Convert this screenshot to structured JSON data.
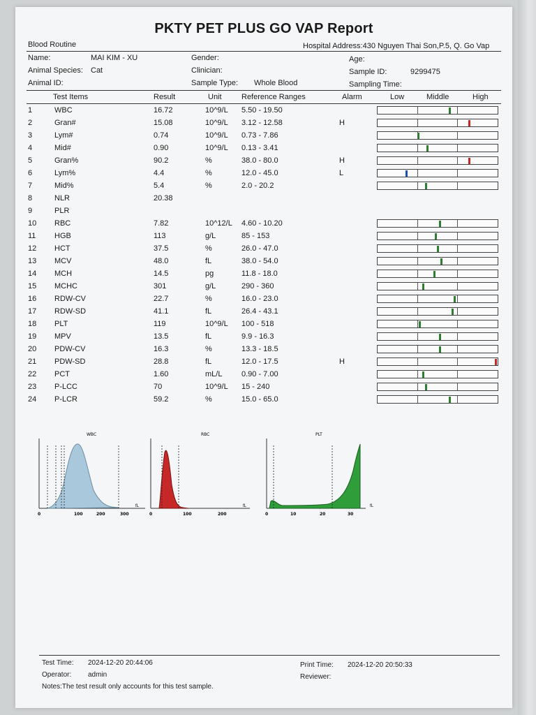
{
  "report": {
    "title": "PKTY PET PLUS GO VAP Report",
    "section": "Blood Routine",
    "hospital_address": "Hospital Address:430 Nguyen Thai Son,P.5, Q. Go Vap"
  },
  "patient": {
    "name_label": "Name:",
    "name_value": "MAI KIM - XU",
    "species_label": "Animal Species:",
    "species_value": "Cat",
    "animal_id_label": "Animal ID:",
    "gender_label": "Gender:",
    "clinician_label": "Clinician:",
    "sample_type_label": "Sample Type:",
    "sample_type_value": "Whole Blood",
    "age_label": "Age:",
    "sample_id_label": "Sample ID:",
    "sample_id_value": "9299475",
    "sampling_time_label": "Sampling Time:"
  },
  "columns": {
    "test_items": "Test Items",
    "result": "Result",
    "unit": "Unit",
    "reference": "Reference Ranges",
    "alarm": "Alarm",
    "low": "Low",
    "middle": "Middle",
    "high": "High"
  },
  "rows": [
    {
      "no": "1",
      "item": "WBC",
      "result": "16.72",
      "unit": "10^9/L",
      "ref": "5.50 - 19.50",
      "alarm": "",
      "level": 0.6,
      "color": "#2e7d32"
    },
    {
      "no": "2",
      "item": "Gran#",
      "result": "15.08",
      "unit": "10^9/L",
      "ref": "3.12 - 12.58",
      "alarm": "H",
      "level": 0.76,
      "color": "#c62828"
    },
    {
      "no": "3",
      "item": "Lym#",
      "result": "0.74",
      "unit": "10^9/L",
      "ref": "0.73 - 7.86",
      "alarm": "",
      "level": 0.34,
      "color": "#2e7d32"
    },
    {
      "no": "4",
      "item": "Mid#",
      "result": "0.90",
      "unit": "10^9/L",
      "ref": "0.13 - 3.41",
      "alarm": "",
      "level": 0.41,
      "color": "#2e7d32"
    },
    {
      "no": "5",
      "item": "Gran%",
      "result": "90.2",
      "unit": "%",
      "ref": "38.0 - 80.0",
      "alarm": "H",
      "level": 0.76,
      "color": "#c62828"
    },
    {
      "no": "6",
      "item": "Lym%",
      "result": "4.4",
      "unit": "%",
      "ref": "12.0 - 45.0",
      "alarm": "L",
      "level": 0.24,
      "color": "#1e4db7"
    },
    {
      "no": "7",
      "item": "Mid%",
      "result": "5.4",
      "unit": "%",
      "ref": "2.0 - 20.2",
      "alarm": "",
      "level": 0.4,
      "color": "#2e7d32"
    },
    {
      "no": "8",
      "item": "NLR",
      "result": "20.38",
      "unit": "",
      "ref": "",
      "alarm": "",
      "level": null,
      "color": ""
    },
    {
      "no": "9",
      "item": "PLR",
      "result": "",
      "unit": "",
      "ref": "",
      "alarm": "",
      "level": null,
      "color": ""
    },
    {
      "no": "10",
      "item": "RBC",
      "result": "7.82",
      "unit": "10^12/L",
      "ref": "4.60 - 10.20",
      "alarm": "",
      "level": 0.52,
      "color": "#2e7d32"
    },
    {
      "no": "11",
      "item": "HGB",
      "result": "113",
      "unit": "g/L",
      "ref": "85 - 153",
      "alarm": "",
      "level": 0.48,
      "color": "#2e7d32"
    },
    {
      "no": "12",
      "item": "HCT",
      "result": "37.5",
      "unit": "%",
      "ref": "26.0 - 47.0",
      "alarm": "",
      "level": 0.5,
      "color": "#2e7d32"
    },
    {
      "no": "13",
      "item": "MCV",
      "result": "48.0",
      "unit": "fL",
      "ref": "38.0 - 54.0",
      "alarm": "",
      "level": 0.53,
      "color": "#2e7d32"
    },
    {
      "no": "14",
      "item": "MCH",
      "result": "14.5",
      "unit": "pg",
      "ref": "11.8 - 18.0",
      "alarm": "",
      "level": 0.47,
      "color": "#2e7d32"
    },
    {
      "no": "15",
      "item": "MCHC",
      "result": "301",
      "unit": "g/L",
      "ref": "290 - 360",
      "alarm": "",
      "level": 0.38,
      "color": "#2e7d32"
    },
    {
      "no": "16",
      "item": "RDW-CV",
      "result": "22.7",
      "unit": "%",
      "ref": "16.0 - 23.0",
      "alarm": "",
      "level": 0.64,
      "color": "#2e7d32"
    },
    {
      "no": "17",
      "item": "RDW-SD",
      "result": "41.1",
      "unit": "fL",
      "ref": "26.4 - 43.1",
      "alarm": "",
      "level": 0.62,
      "color": "#2e7d32"
    },
    {
      "no": "18",
      "item": "PLT",
      "result": "119",
      "unit": "10^9/L",
      "ref": "100 - 518",
      "alarm": "",
      "level": 0.35,
      "color": "#2e7d32"
    },
    {
      "no": "19",
      "item": "MPV",
      "result": "13.5",
      "unit": "fL",
      "ref": "9.9 - 16.3",
      "alarm": "",
      "level": 0.52,
      "color": "#2e7d32"
    },
    {
      "no": "20",
      "item": "PDW-CV",
      "result": "16.3",
      "unit": "%",
      "ref": "13.3 - 18.5",
      "alarm": "",
      "level": 0.52,
      "color": "#2e7d32"
    },
    {
      "no": "21",
      "item": "PDW-SD",
      "result": "28.8",
      "unit": "fL",
      "ref": "12.0 - 17.5",
      "alarm": "H",
      "level": 0.99,
      "color": "#c62828"
    },
    {
      "no": "22",
      "item": "PCT",
      "result": "1.60",
      "unit": "mL/L",
      "ref": "0.90 - 7.00",
      "alarm": "",
      "level": 0.38,
      "color": "#2e7d32"
    },
    {
      "no": "23",
      "item": "P-LCC",
      "result": "70",
      "unit": "10^9/L",
      "ref": "15 - 240",
      "alarm": "",
      "level": 0.4,
      "color": "#2e7d32"
    },
    {
      "no": "24",
      "item": "P-LCR",
      "result": "59.2",
      "unit": "%",
      "ref": "15.0 - 65.0",
      "alarm": "",
      "level": 0.6,
      "color": "#2e7d32"
    }
  ],
  "histograms": [
    {
      "name": "WBC",
      "unit": "fL",
      "color": "#a9c8dc",
      "ticks": [
        "0",
        "100",
        "200",
        "300"
      ]
    },
    {
      "name": "RBC",
      "unit": "fL",
      "color": "#c62828",
      "ticks": [
        "0",
        "100",
        "200"
      ]
    },
    {
      "name": "PLT",
      "unit": "fL",
      "color": "#2e9d3a",
      "ticks": [
        "0",
        "10",
        "20",
        "30"
      ]
    }
  ],
  "footer": {
    "test_time_label": "Test Time:",
    "test_time_value": "2024-12-20 20:44:06",
    "operator_label": "Operator:",
    "operator_value": "admin",
    "notes": "Notes:The test result only accounts for this test sample.",
    "print_time_label": "Print Time:",
    "print_time_value": "2024-12-20 20:50:33",
    "reviewer_label": "Reviewer:"
  }
}
